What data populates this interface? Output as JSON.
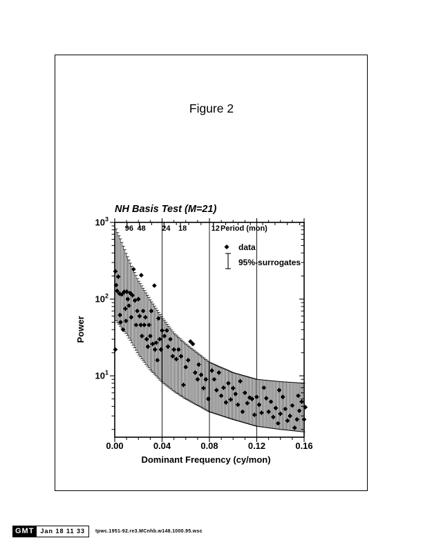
{
  "page": {
    "figure_label": "Figure 2"
  },
  "stamp": {
    "logo": "GMT",
    "datetime": "Jan 18 11 33",
    "filename": "tpwc.1951-92.re3.MCnhb.w148.1000.95.wsc"
  },
  "colors": {
    "ink": "#000000",
    "paper": "#ffffff"
  },
  "chart_data": {
    "type": "scatter",
    "title": "NH Basis Test (M=21)",
    "xlabel": "Dominant Frequency (cy/mon)",
    "ylabel": "Power",
    "xlim": [
      0,
      0.16
    ],
    "ylim_log": [
      1.585,
      1000
    ],
    "grid": "vertical-at-x-major",
    "gridlines_x": [
      0.04,
      0.08,
      0.12
    ],
    "x_major_ticks": [
      {
        "f": 0.0,
        "label": "0.00"
      },
      {
        "f": 0.04,
        "label": "0.04"
      },
      {
        "f": 0.08,
        "label": "0.08"
      },
      {
        "f": 0.12,
        "label": "0.12"
      },
      {
        "f": 0.16,
        "label": "0.16"
      }
    ],
    "x_minor_step": 0.01,
    "y_major_ticks": [
      {
        "value": 10,
        "exponent": "1"
      },
      {
        "value": 100,
        "exponent": "2"
      },
      {
        "value": 1000,
        "exponent": "3"
      }
    ],
    "top_axis": {
      "title": "Period (mon)",
      "labeled_periods": [
        {
          "months": 96,
          "label": "96"
        },
        {
          "months": 48,
          "label": "48"
        },
        {
          "months": 24,
          "label": "24"
        },
        {
          "months": 18,
          "label": "18"
        },
        {
          "months": 12,
          "label": "12"
        }
      ],
      "minor_harmonic_base_months": 96
    },
    "legend": [
      {
        "symbol": "diamond",
        "label": "data"
      },
      {
        "symbol": "error-bar",
        "label": "95%-surrogates"
      }
    ],
    "series": {
      "data_points": [
        [
          0.0005,
          230
        ],
        [
          0.0005,
          22
        ],
        [
          0.0012,
          152
        ],
        [
          0.002,
          128
        ],
        [
          0.003,
          196
        ],
        [
          0.004,
          118
        ],
        [
          0.0045,
          62
        ],
        [
          0.005,
          50
        ],
        [
          0.006,
          115
        ],
        [
          0.007,
          40
        ],
        [
          0.008,
          124
        ],
        [
          0.009,
          75
        ],
        [
          0.0095,
          52
        ],
        [
          0.01,
          125
        ],
        [
          0.011,
          100
        ],
        [
          0.012,
          82
        ],
        [
          0.013,
          120
        ],
        [
          0.014,
          58
        ],
        [
          0.015,
          112
        ],
        [
          0.0159,
          245
        ],
        [
          0.017,
          96
        ],
        [
          0.018,
          46
        ],
        [
          0.019,
          70
        ],
        [
          0.02,
          100
        ],
        [
          0.021,
          60
        ],
        [
          0.022,
          46
        ],
        [
          0.0224,
          205
        ],
        [
          0.023,
          33
        ],
        [
          0.024,
          70
        ],
        [
          0.025,
          46
        ],
        [
          0.026,
          58
        ],
        [
          0.027,
          30
        ],
        [
          0.028,
          24
        ],
        [
          0.029,
          46
        ],
        [
          0.03,
          33
        ],
        [
          0.031,
          70
        ],
        [
          0.032,
          26
        ],
        [
          0.0335,
          150
        ],
        [
          0.034,
          22
        ],
        [
          0.035,
          27
        ],
        [
          0.036,
          16
        ],
        [
          0.037,
          56
        ],
        [
          0.038,
          30
        ],
        [
          0.039,
          22
        ],
        [
          0.04,
          39
        ],
        [
          0.042,
          33
        ],
        [
          0.044,
          39
        ],
        [
          0.045,
          24
        ],
        [
          0.047,
          30
        ],
        [
          0.049,
          18
        ],
        [
          0.05,
          22
        ],
        [
          0.052,
          16.5
        ],
        [
          0.054,
          22
        ],
        [
          0.056,
          18
        ],
        [
          0.058,
          7.6
        ],
        [
          0.06,
          13
        ],
        [
          0.062,
          16
        ],
        [
          0.064,
          28
        ],
        [
          0.066,
          26
        ],
        [
          0.068,
          11
        ],
        [
          0.07,
          9
        ],
        [
          0.071,
          14
        ],
        [
          0.073,
          10.3
        ],
        [
          0.075,
          6.9
        ],
        [
          0.077,
          9
        ],
        [
          0.079,
          5.0
        ],
        [
          0.082,
          11.7
        ],
        [
          0.084,
          9
        ],
        [
          0.086,
          6.5
        ],
        [
          0.088,
          11
        ],
        [
          0.09,
          5.5
        ],
        [
          0.092,
          7
        ],
        [
          0.094,
          4.5
        ],
        [
          0.096,
          8
        ],
        [
          0.098,
          4.9
        ],
        [
          0.1,
          6.9
        ],
        [
          0.102,
          5.8
        ],
        [
          0.104,
          4.2
        ],
        [
          0.106,
          8.5
        ],
        [
          0.108,
          3.4
        ],
        [
          0.11,
          6
        ],
        [
          0.112,
          4.4
        ],
        [
          0.114,
          5.2
        ],
        [
          0.116,
          5.0
        ],
        [
          0.118,
          3.1
        ],
        [
          0.12,
          5.3
        ],
        [
          0.122,
          4.2
        ],
        [
          0.124,
          3.3
        ],
        [
          0.126,
          7
        ],
        [
          0.128,
          5.1
        ],
        [
          0.13,
          3.4
        ],
        [
          0.132,
          4.6
        ],
        [
          0.134,
          2.9
        ],
        [
          0.136,
          3.8
        ],
        [
          0.138,
          2.4
        ],
        [
          0.139,
          6.5
        ],
        [
          0.14,
          3.2
        ],
        [
          0.142,
          5.3
        ],
        [
          0.144,
          3.7
        ],
        [
          0.146,
          2.6
        ],
        [
          0.148,
          3.0
        ],
        [
          0.15,
          4.1
        ],
        [
          0.152,
          2.1
        ],
        [
          0.154,
          2.7
        ],
        [
          0.155,
          5.5
        ],
        [
          0.156,
          3.5
        ],
        [
          0.158,
          4.6
        ],
        [
          0.16,
          2.7
        ],
        [
          0.161,
          3.9
        ]
      ],
      "surrogate_band_95pct": {
        "bin_step": 0.0012,
        "control_f": [
          0.0012,
          0.002,
          0.005,
          0.01,
          0.015,
          0.02,
          0.03,
          0.04,
          0.05,
          0.06,
          0.08,
          0.1,
          0.12,
          0.14,
          0.161
        ],
        "upper": [
          820,
          760,
          600,
          380,
          255,
          175,
          98,
          58,
          36,
          26,
          15,
          11,
          9.0,
          8.4,
          8.0
        ],
        "lower": [
          52,
          50,
          44,
          35,
          26,
          19,
          12,
          8.3,
          6.3,
          5.0,
          3.4,
          2.7,
          2.2,
          2.0,
          1.85
        ]
      }
    }
  }
}
